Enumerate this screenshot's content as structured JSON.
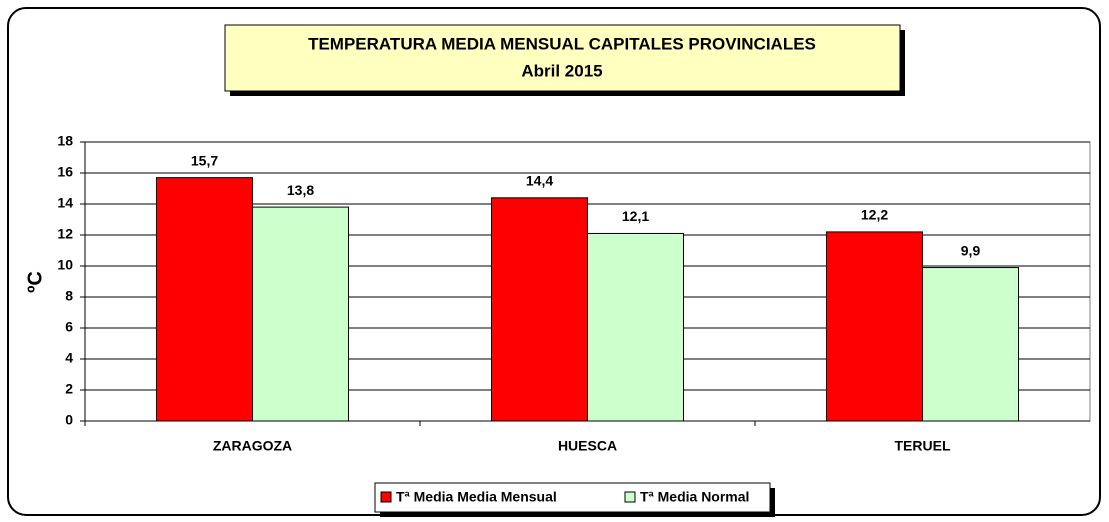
{
  "chart_data": {
    "type": "bar",
    "title": "TEMPERATURA MEDIA MENSUAL CAPITALES PROVINCIALES",
    "subtitle": "Abril 2015",
    "y_label": "ºC",
    "categories": [
      "ZARAGOZA",
      "HUESCA",
      "TERUEL"
    ],
    "series": [
      {
        "name": "Tª Media Media Mensual",
        "color": "#ff0000",
        "values": [
          15.7,
          14.4,
          12.2
        ],
        "value_labels": [
          "15,7",
          "14,4",
          "12,2"
        ]
      },
      {
        "name": "Tª Media Normal",
        "color": "#ccffcc",
        "values": [
          13.8,
          12.1,
          9.9
        ],
        "value_labels": [
          "13,8",
          "12,1",
          "9,9"
        ]
      }
    ],
    "ylim": [
      0,
      18
    ],
    "yticks": [
      0,
      2,
      4,
      6,
      8,
      10,
      12,
      14,
      16,
      18
    ],
    "grid": true,
    "legend": "bottom"
  }
}
